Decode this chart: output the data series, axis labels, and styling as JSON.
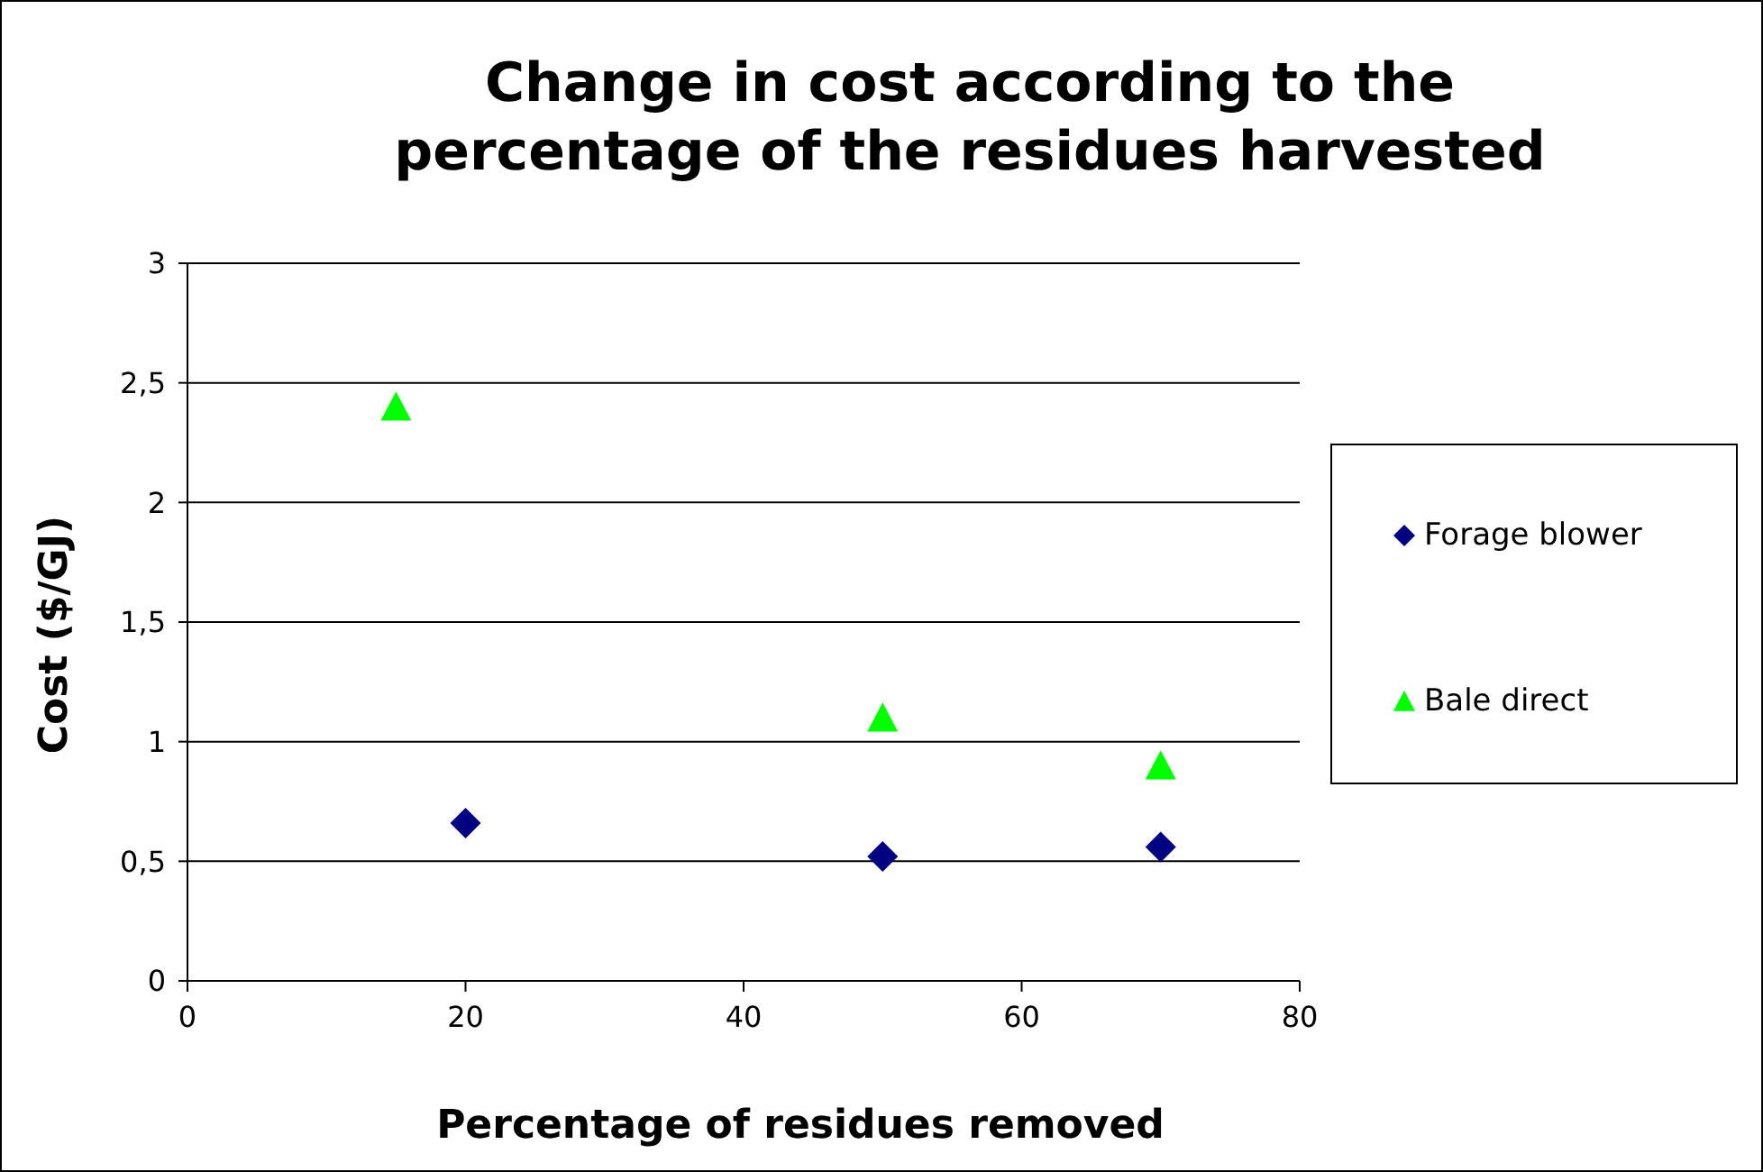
{
  "chart_data": {
    "type": "scatter",
    "title": "Change in cost according to the percentage of the residues harvested",
    "xlabel": "Percentage of residues removed",
    "ylabel": "Cost ($/GJ)",
    "series": [
      {
        "name": "Forage blower",
        "color": "#000080",
        "marker": "diamond",
        "x": [
          20,
          50,
          70
        ],
        "values": [
          0.66,
          0.52,
          0.56
        ]
      },
      {
        "name": "Bale direct",
        "color": "#00ff00",
        "marker": "triangle",
        "x": [
          15,
          50,
          70
        ],
        "values": [
          2.4,
          1.1,
          0.9
        ]
      }
    ],
    "xlim": [
      0,
      80
    ],
    "xticks": [
      0,
      20,
      40,
      60,
      80
    ],
    "ylim": [
      0,
      3
    ],
    "yticks": [
      0,
      {
        "value": 0.5,
        "label": "0,5"
      },
      1,
      {
        "value": 1.5,
        "label": "1,5"
      },
      2,
      {
        "value": 2.5,
        "label": "2,5"
      },
      3
    ],
    "grid": "y",
    "legend": "right"
  }
}
